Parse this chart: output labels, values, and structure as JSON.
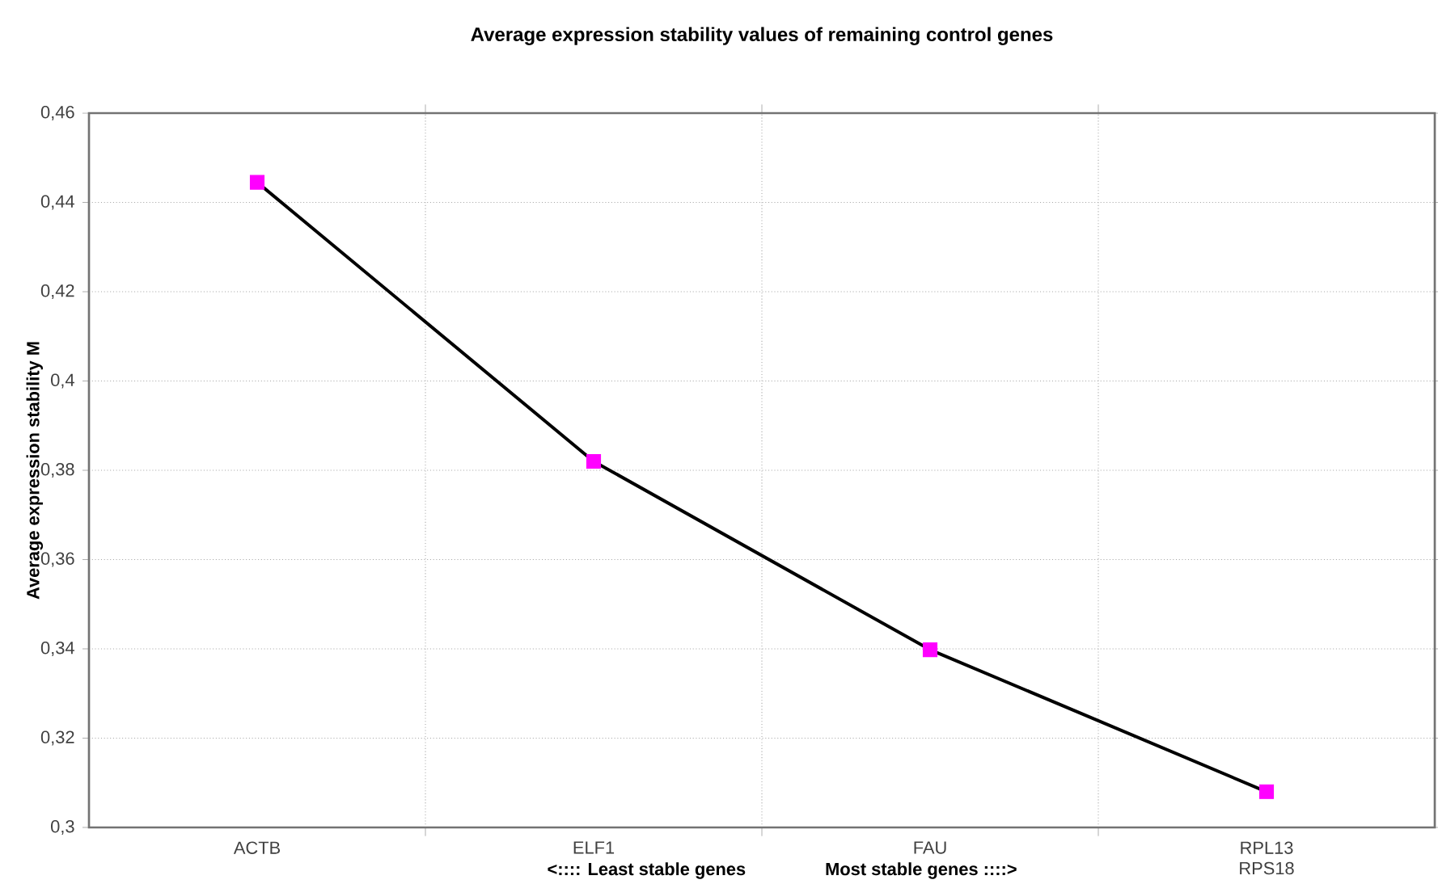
{
  "chart_data": {
    "type": "line",
    "title": "Average expression stability values of remaining control genes",
    "ylabel": "Average expression stability M",
    "categories": [
      "ACTB",
      "ELF1",
      "FAU",
      "RPL13 RPS18"
    ],
    "series": [
      {
        "color": "#000000",
        "colors": [
          "#ff00ff",
          "#ff00ff",
          "#ff00ff",
          "#ff00ff"
        ],
        "values": [
          0.4445,
          0.382,
          0.3398,
          0.308
        ]
      }
    ],
    "ylim": [
      0.3,
      0.46
    ],
    "yticks": [
      {
        "value": 0.3,
        "label": "0,3"
      },
      {
        "value": 0.32,
        "label": "0,32"
      },
      {
        "value": 0.34,
        "label": "0,34"
      },
      {
        "value": 0.36,
        "label": "0,36"
      },
      {
        "value": 0.38,
        "label": "0,38"
      },
      {
        "value": 0.4,
        "label": "0,4"
      },
      {
        "value": 0.42,
        "label": "0,42"
      },
      {
        "value": 0.44,
        "label": "0,44"
      },
      {
        "value": 0.46,
        "label": "0,46"
      }
    ],
    "annotations": [
      "<::::  Least stable genes",
      "Most stable genes ::::>"
    ],
    "grid": true,
    "marker": "square",
    "line_style": "solid"
  }
}
